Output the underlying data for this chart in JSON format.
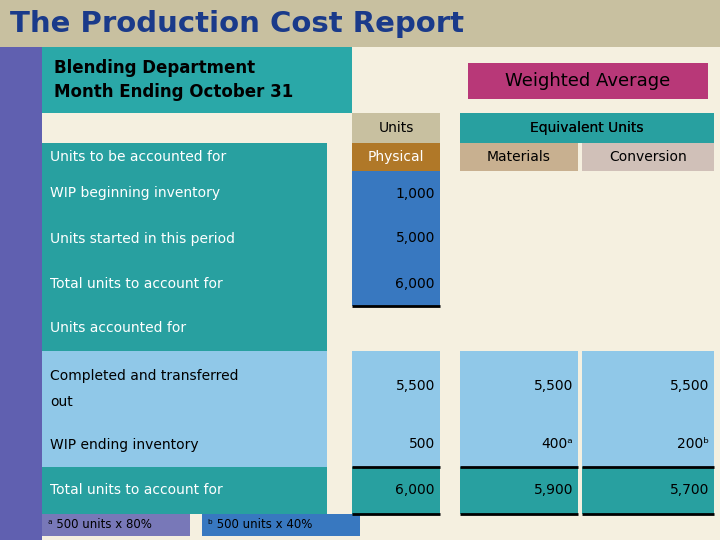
{
  "title": "The Production Cost Report",
  "title_bg": "#c8c0a0",
  "title_color": "#1a3a8a",
  "subtitle_line1": "Blending Department",
  "subtitle_line2": "Month Ending October 31",
  "subtitle_bg": "#6060b0",
  "subtitle_text_bg": "#2aa8a8",
  "weighted_avg_text": "Weighted Average",
  "weighted_avg_bg": "#b83878",
  "weighted_avg_color": "#000000",
  "bg_color": "#f5f0e0",
  "purple_sidebar_color": "#6060b0",
  "col_units_bg": "#c8c0a0",
  "col_equiv_bg": "#28a0a0",
  "col_physical_bg": "#b07828",
  "col_physical_color": "#ffffff",
  "col_materials_bg": "#c8b090",
  "col_conversion_bg": "#d0c0b8",
  "data_blue_dark": "#3878c0",
  "data_blue_light": "#90c8e8",
  "data_teal": "#28a0a0",
  "rows": [
    {
      "label": "Units to be accounted for",
      "label_bg": "#28a0a0",
      "physical": "",
      "phys_bg": "#b07828",
      "materials": "",
      "mat_bg": "#c8b090",
      "conversion": "",
      "conv_bg": "#d0c0b8",
      "underline": false,
      "two_line": false
    },
    {
      "label": "WIP beginning inventory",
      "label_bg": "#28a0a0",
      "physical": "1,000",
      "phys_bg": "#3878c0",
      "materials": "",
      "mat_bg": "#f5f0e0",
      "conversion": "",
      "conv_bg": "#f5f0e0",
      "underline": false,
      "two_line": false
    },
    {
      "label": "Units started in this period",
      "label_bg": "#28a0a0",
      "physical": "5,000",
      "phys_bg": "#3878c0",
      "materials": "",
      "mat_bg": "#f5f0e0",
      "conversion": "",
      "conv_bg": "#f5f0e0",
      "underline": false,
      "two_line": false
    },
    {
      "label": "Total units to account for",
      "label_bg": "#28a0a0",
      "physical": "6,000",
      "phys_bg": "#3878c0",
      "materials": "",
      "mat_bg": "#f5f0e0",
      "conversion": "",
      "conv_bg": "#f5f0e0",
      "underline": true,
      "two_line": false
    },
    {
      "label": "Units accounted for",
      "label_bg": "#28a0a0",
      "physical": "",
      "phys_bg": "#f5f0e0",
      "materials": "",
      "mat_bg": "#f5f0e0",
      "conversion": "",
      "conv_bg": "#f5f0e0",
      "underline": false,
      "two_line": false
    },
    {
      "label": "Completed and transferred\nout",
      "label_bg": "#90c8e8",
      "physical": "5,500",
      "phys_bg": "#90c8e8",
      "materials": "5,500",
      "mat_bg": "#90c8e8",
      "conversion": "5,500",
      "conv_bg": "#90c8e8",
      "underline": false,
      "two_line": true
    },
    {
      "label": "WIP ending inventory",
      "label_bg": "#90c8e8",
      "physical": "500",
      "phys_bg": "#90c8e8",
      "materials": "400ᵃ",
      "mat_bg": "#90c8e8",
      "conversion": "200ᵇ",
      "conv_bg": "#90c8e8",
      "underline": true,
      "two_line": false
    },
    {
      "label": "Total units to account for",
      "label_bg": "#28a0a0",
      "physical": "6,000",
      "phys_bg": "#28a0a0",
      "materials": "5,900",
      "mat_bg": "#28a0a0",
      "conversion": "5,700",
      "conv_bg": "#28a0a0",
      "underline": true,
      "two_line": false
    }
  ],
  "footnote_a": "ᵃ 500 units x 80%",
  "footnote_b": "ᵇ 500 units x 40%",
  "footnote_bg_a": "#7878b8",
  "footnote_bg_b": "#3878c0"
}
